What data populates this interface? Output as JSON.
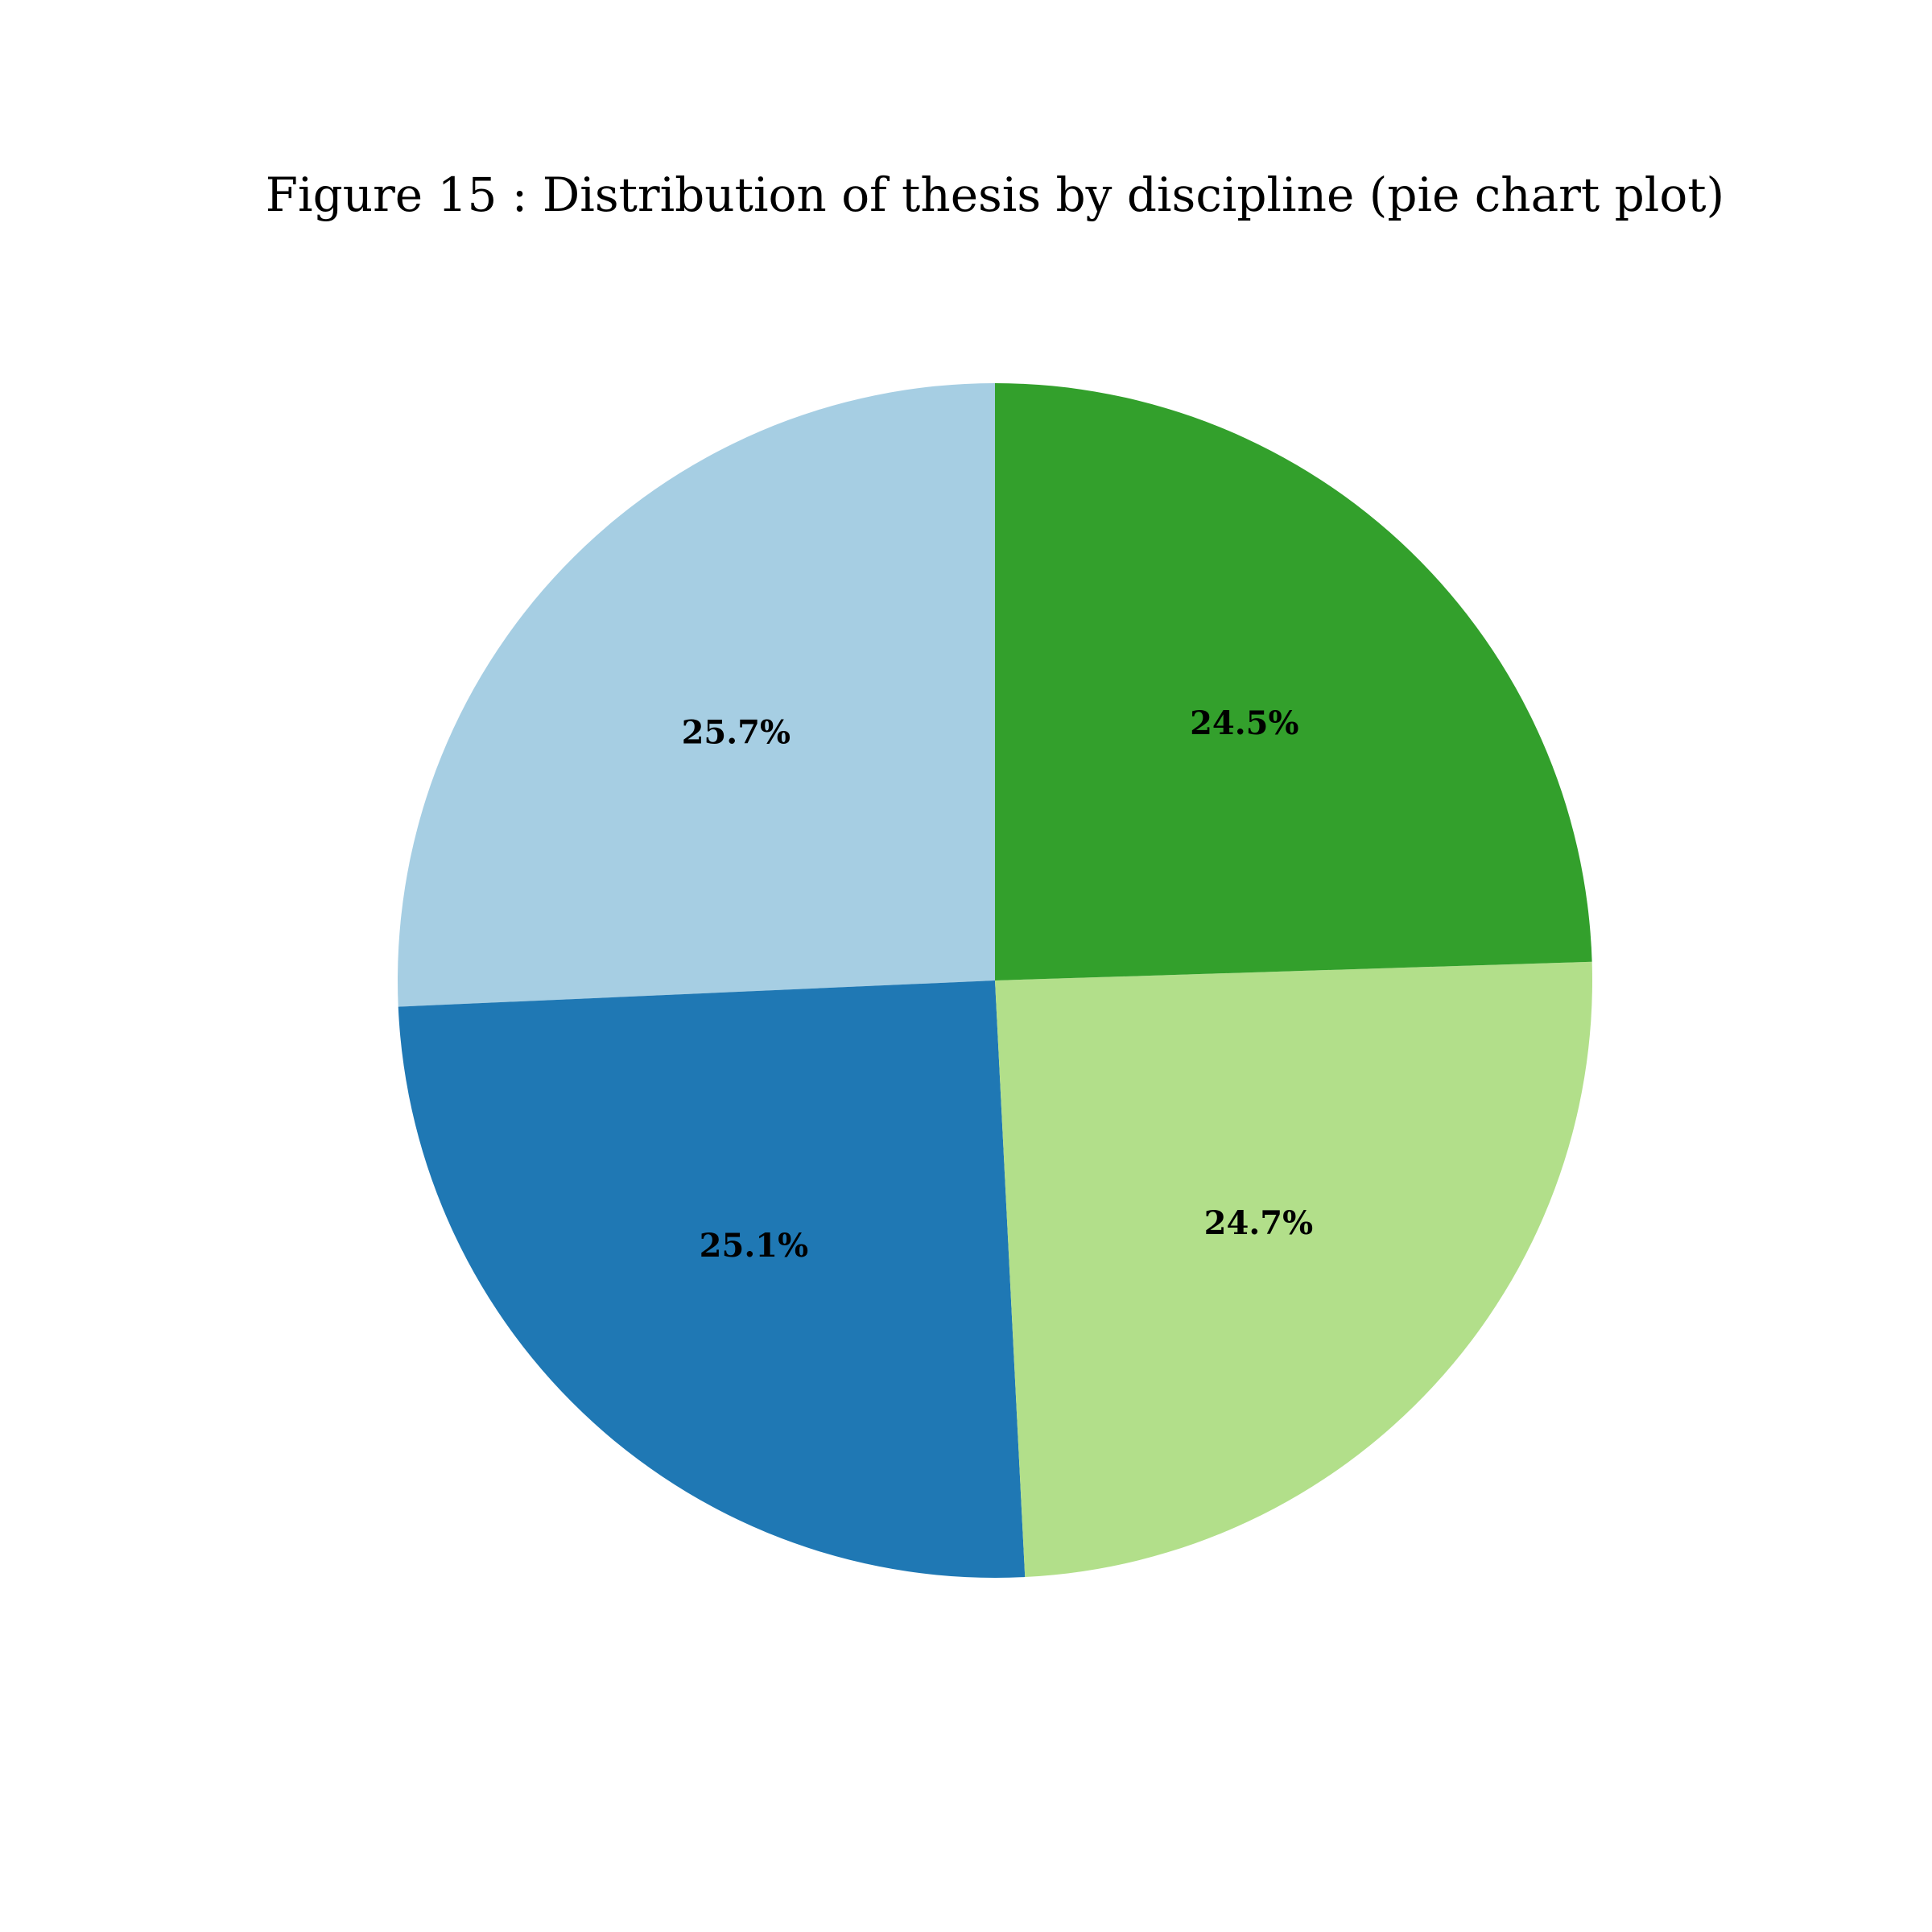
{
  "chart_data": {
    "type": "pie",
    "title": "Figure 15 : Distribution of thesis by discipline (pie chart plot)",
    "start_angle_deg": 90,
    "direction": "counterclockwise",
    "slices": [
      {
        "value": 25.7,
        "label": "25.7%",
        "color": "#a6cee3"
      },
      {
        "value": 25.1,
        "label": "25.1%",
        "color": "#1f78b4"
      },
      {
        "value": 24.7,
        "label": "24.7%",
        "color": "#b2df8a"
      },
      {
        "value": 24.5,
        "label": "24.5%",
        "color": "#33a02c"
      }
    ]
  }
}
